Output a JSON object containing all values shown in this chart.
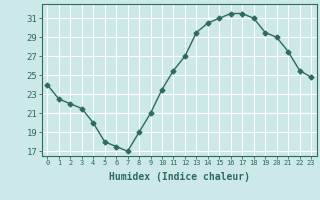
{
  "x": [
    0,
    1,
    2,
    3,
    4,
    5,
    6,
    7,
    8,
    9,
    10,
    11,
    12,
    13,
    14,
    15,
    16,
    17,
    18,
    19,
    20,
    21,
    22,
    23
  ],
  "y": [
    24.0,
    22.5,
    22.0,
    21.5,
    20.0,
    18.0,
    17.5,
    17.0,
    19.0,
    21.0,
    23.5,
    25.5,
    27.0,
    29.5,
    30.5,
    31.0,
    31.5,
    31.5,
    31.0,
    29.5,
    29.0,
    27.5,
    25.5,
    24.8
  ],
  "line_color": "#2e6b5e",
  "marker": "D",
  "marker_size": 2.5,
  "bg_color": "#cce8e8",
  "grid_color": "#ffffff",
  "xlabel": "Humidex (Indice chaleur)",
  "ylabel_ticks": [
    17,
    19,
    21,
    23,
    25,
    27,
    29,
    31
  ],
  "xlim": [
    -0.5,
    23.5
  ],
  "ylim": [
    16.5,
    32.5
  ],
  "xtick_labels": [
    "0",
    "1",
    "2",
    "3",
    "4",
    "5",
    "6",
    "7",
    "8",
    "9",
    "10",
    "11",
    "12",
    "13",
    "14",
    "15",
    "16",
    "17",
    "18",
    "19",
    "20",
    "21",
    "22",
    "23"
  ],
  "font_color": "#2e6b5e",
  "linewidth": 1.0
}
